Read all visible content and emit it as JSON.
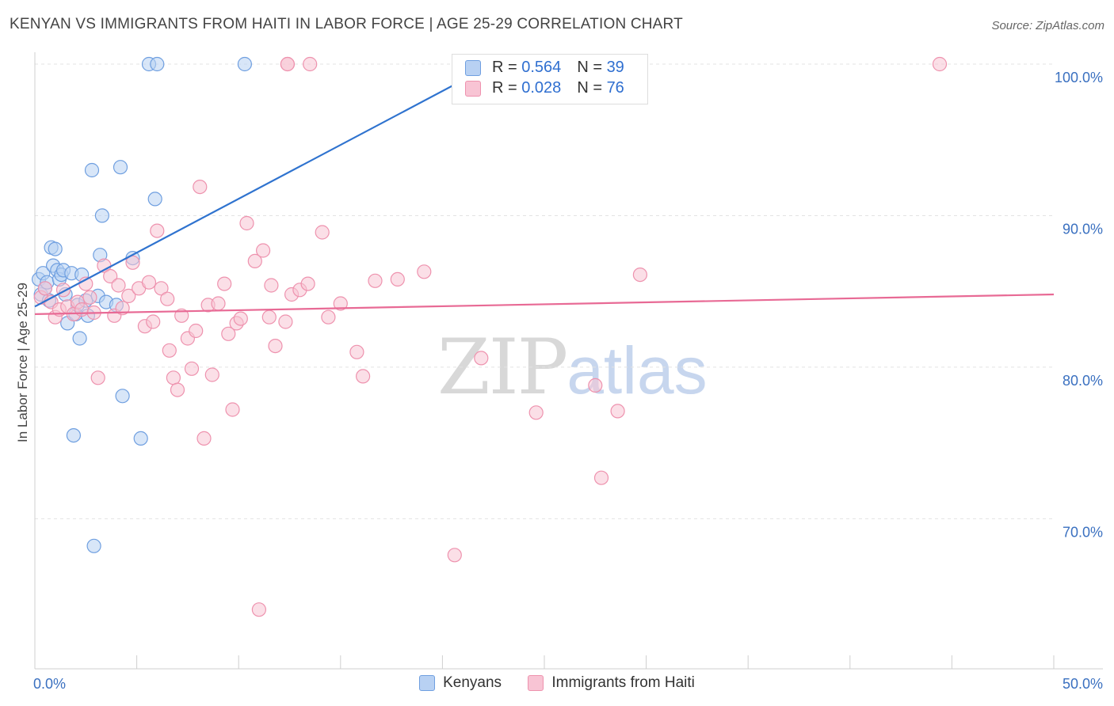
{
  "header": {
    "title": "KENYAN VS IMMIGRANTS FROM HAITI IN LABOR FORCE | AGE 25-29 CORRELATION CHART",
    "source": "Source: ZipAtlas.com"
  },
  "watermark": {
    "zip": "ZIP",
    "atlas": "atlas"
  },
  "legend": {
    "r_label": "R = ",
    "n_label": "N = ",
    "series": [
      {
        "r": "0.564",
        "n": "39"
      },
      {
        "r": "0.028",
        "n": "76"
      }
    ]
  },
  "colors": {
    "kenyans_fill": "#b8d1f3",
    "kenyans_stroke": "#6f9fe0",
    "kenyans_line": "#2f73cf",
    "haiti_fill": "#f8c4d4",
    "haiti_stroke": "#ee92ae",
    "haiti_line": "#e86a95"
  },
  "chart_data": {
    "type": "scatter",
    "title": "KENYAN VS IMMIGRANTS FROM HAITI IN LABOR FORCE | AGE 25-29 CORRELATION CHART",
    "xlabel": "",
    "ylabel": "In Labor Force | Age 25-29",
    "xlim": [
      0,
      50
    ],
    "ylim": [
      60,
      100
    ],
    "x_tick_labels": [
      {
        "value": 0,
        "label": "0.0%"
      },
      {
        "value": 50,
        "label": "50.0%"
      }
    ],
    "y_tick_labels": [
      {
        "value": 70,
        "label": "70.0%"
      },
      {
        "value": 80,
        "label": "80.0%"
      },
      {
        "value": 90,
        "label": "90.0%"
      },
      {
        "value": 100,
        "label": "100.0%"
      }
    ],
    "grid": true,
    "legend_position": "top-center",
    "series": [
      {
        "name": "Kenyans",
        "r": 0.564,
        "n": 39,
        "trend": [
          [
            0.0,
            84.0
          ],
          [
            22.5,
            100.0
          ]
        ],
        "points": [
          [
            0.2,
            85.8
          ],
          [
            0.3,
            84.8
          ],
          [
            0.4,
            86.2
          ],
          [
            0.5,
            85.2
          ],
          [
            0.6,
            85.6
          ],
          [
            0.7,
            84.4
          ],
          [
            0.8,
            87.9
          ],
          [
            0.9,
            86.7
          ],
          [
            1.0,
            87.8
          ],
          [
            1.1,
            86.4
          ],
          [
            1.2,
            85.8
          ],
          [
            1.3,
            86.1
          ],
          [
            1.4,
            86.4
          ],
          [
            1.5,
            84.8
          ],
          [
            1.6,
            82.9
          ],
          [
            1.8,
            86.2
          ],
          [
            1.9,
            75.5
          ],
          [
            2.0,
            83.5
          ],
          [
            2.1,
            84.1
          ],
          [
            2.2,
            81.9
          ],
          [
            2.3,
            86.1
          ],
          [
            2.5,
            84.4
          ],
          [
            2.6,
            83.4
          ],
          [
            2.8,
            93.0
          ],
          [
            2.9,
            68.2
          ],
          [
            3.1,
            84.7
          ],
          [
            3.2,
            87.4
          ],
          [
            3.3,
            90.0
          ],
          [
            3.5,
            84.3
          ],
          [
            4.0,
            84.1
          ],
          [
            4.2,
            93.2
          ],
          [
            4.3,
            78.1
          ],
          [
            4.8,
            87.2
          ],
          [
            5.2,
            75.3
          ],
          [
            5.9,
            91.1
          ],
          [
            5.6,
            100.0
          ],
          [
            6.0,
            100.0
          ],
          [
            10.3,
            100.0
          ],
          [
            24.8,
            100.0
          ]
        ]
      },
      {
        "name": "Immigrants from Haiti",
        "r": 0.028,
        "n": 76,
        "trend": [
          [
            0.0,
            83.5
          ],
          [
            50.0,
            84.8
          ]
        ],
        "points": [
          [
            0.3,
            84.6
          ],
          [
            0.5,
            85.2
          ],
          [
            0.8,
            84.3
          ],
          [
            1.0,
            83.3
          ],
          [
            1.2,
            83.8
          ],
          [
            1.4,
            85.1
          ],
          [
            1.6,
            84.0
          ],
          [
            1.9,
            83.5
          ],
          [
            2.1,
            84.3
          ],
          [
            2.3,
            83.8
          ],
          [
            2.5,
            85.5
          ],
          [
            2.7,
            84.6
          ],
          [
            2.9,
            83.6
          ],
          [
            3.1,
            79.3
          ],
          [
            3.4,
            86.7
          ],
          [
            3.7,
            86.0
          ],
          [
            3.9,
            83.4
          ],
          [
            4.1,
            85.4
          ],
          [
            4.3,
            83.9
          ],
          [
            4.6,
            84.7
          ],
          [
            4.8,
            86.9
          ],
          [
            5.1,
            85.2
          ],
          [
            5.4,
            82.7
          ],
          [
            5.6,
            85.6
          ],
          [
            5.8,
            83.0
          ],
          [
            6.0,
            89.0
          ],
          [
            6.2,
            85.2
          ],
          [
            6.5,
            84.5
          ],
          [
            6.6,
            81.1
          ],
          [
            6.8,
            79.3
          ],
          [
            7.0,
            78.5
          ],
          [
            7.2,
            83.4
          ],
          [
            7.5,
            81.9
          ],
          [
            7.7,
            79.9
          ],
          [
            7.9,
            82.4
          ],
          [
            8.1,
            91.9
          ],
          [
            8.3,
            75.3
          ],
          [
            8.5,
            84.1
          ],
          [
            8.7,
            79.5
          ],
          [
            9.0,
            84.2
          ],
          [
            9.3,
            85.5
          ],
          [
            9.5,
            82.2
          ],
          [
            9.7,
            77.2
          ],
          [
            9.9,
            82.9
          ],
          [
            10.1,
            83.2
          ],
          [
            10.4,
            89.5
          ],
          [
            10.8,
            87.0
          ],
          [
            11.2,
            87.7
          ],
          [
            11.5,
            83.3
          ],
          [
            11.6,
            85.4
          ],
          [
            11.8,
            81.4
          ],
          [
            12.3,
            83.0
          ],
          [
            12.6,
            84.8
          ],
          [
            13.0,
            85.1
          ],
          [
            13.4,
            85.5
          ],
          [
            14.1,
            88.9
          ],
          [
            14.4,
            83.3
          ],
          [
            15.0,
            84.2
          ],
          [
            15.8,
            81.0
          ],
          [
            16.1,
            79.4
          ],
          [
            16.7,
            85.7
          ],
          [
            17.8,
            85.8
          ],
          [
            19.1,
            86.3
          ],
          [
            21.6,
            100.0
          ],
          [
            13.5,
            100.0
          ],
          [
            12.4,
            100.0
          ],
          [
            21.9,
            80.6
          ],
          [
            24.6,
            77.0
          ],
          [
            27.5,
            78.8
          ],
          [
            27.8,
            72.7
          ],
          [
            28.6,
            77.1
          ],
          [
            29.7,
            86.1
          ],
          [
            20.6,
            67.6
          ],
          [
            11.0,
            64.0
          ],
          [
            44.4,
            100.0
          ],
          [
            12.4,
            100.0
          ]
        ]
      }
    ]
  },
  "bottom_legend": {
    "items": [
      "Kenyans",
      "Immigrants from Haiti"
    ]
  }
}
